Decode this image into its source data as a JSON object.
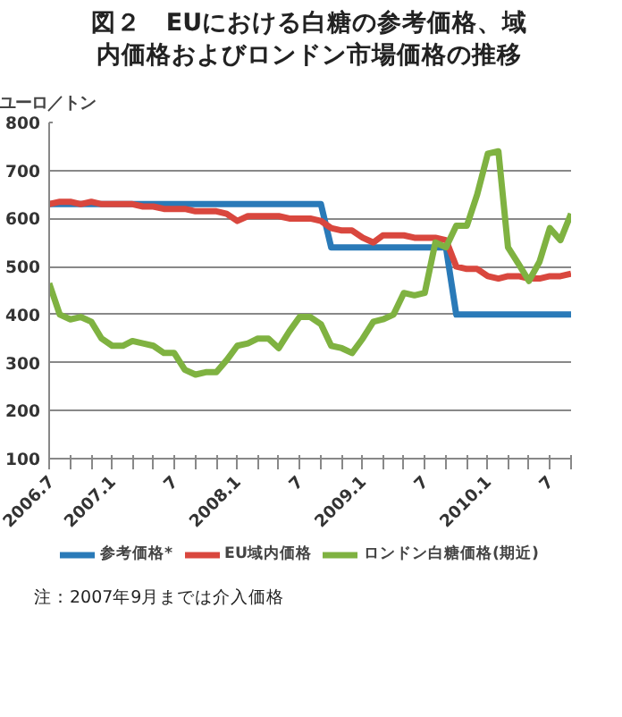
{
  "chart_data": {
    "type": "line",
    "title": "図２　EUにおける白糖の参考価格、域内価格およびロンドン市場価格の推移",
    "ylabel": "ユーロ／トン",
    "x": [
      "2006-07",
      "2006-08",
      "2006-09",
      "2006-10",
      "2006-11",
      "2006-12",
      "2007-01",
      "2007-02",
      "2007-03",
      "2007-04",
      "2007-05",
      "2007-06",
      "2007-07",
      "2007-08",
      "2007-09",
      "2007-10",
      "2007-11",
      "2007-12",
      "2008-01",
      "2008-02",
      "2008-03",
      "2008-04",
      "2008-05",
      "2008-06",
      "2008-07",
      "2008-08",
      "2008-09",
      "2008-10",
      "2008-11",
      "2008-12",
      "2009-01",
      "2009-02",
      "2009-03",
      "2009-04",
      "2009-05",
      "2009-06",
      "2009-07",
      "2009-08",
      "2009-09",
      "2009-10",
      "2009-11",
      "2009-12",
      "2010-01",
      "2010-02",
      "2010-03",
      "2010-04",
      "2010-05",
      "2010-06",
      "2010-07",
      "2010-08",
      "2010-09"
    ],
    "series": [
      {
        "name": "参考価格*",
        "color": "#2a7ab8",
        "values": [
          630,
          630,
          630,
          630,
          630,
          630,
          630,
          630,
          630,
          630,
          630,
          630,
          630,
          630,
          630,
          630,
          630,
          630,
          630,
          630,
          630,
          630,
          630,
          630,
          630,
          630,
          630,
          540,
          540,
          540,
          540,
          540,
          540,
          540,
          540,
          540,
          540,
          540,
          540,
          400,
          400,
          400,
          400,
          400,
          400,
          400,
          400,
          400,
          400,
          400,
          400
        ]
      },
      {
        "name": "EU域内価格",
        "color": "#d9473e",
        "values": [
          630,
          635,
          635,
          630,
          635,
          630,
          630,
          630,
          630,
          625,
          625,
          620,
          620,
          620,
          615,
          615,
          615,
          610,
          595,
          605,
          605,
          605,
          605,
          600,
          600,
          600,
          595,
          580,
          575,
          575,
          560,
          550,
          565,
          565,
          565,
          560,
          560,
          560,
          555,
          500,
          495,
          495,
          480,
          475,
          480,
          480,
          475,
          475,
          480,
          480,
          485
        ]
      },
      {
        "name": "ロンドン白糖価格(期近)",
        "color": "#7fb241",
        "values": [
          465,
          400,
          390,
          395,
          385,
          350,
          335,
          335,
          345,
          340,
          335,
          320,
          320,
          285,
          275,
          280,
          280,
          305,
          335,
          340,
          350,
          350,
          330,
          365,
          395,
          395,
          380,
          335,
          330,
          320,
          350,
          385,
          390,
          400,
          445,
          440,
          445,
          550,
          540,
          585,
          585,
          650,
          735,
          740,
          540,
          505,
          470,
          510,
          580,
          555,
          610
        ]
      }
    ],
    "xlim": [
      "2006-07",
      "2010-09"
    ],
    "xticks": [
      {
        "value": "2006-07",
        "label": "2006.7"
      },
      {
        "value": "2006-09",
        "label": null
      },
      {
        "value": "2006-11",
        "label": null
      },
      {
        "value": "2007-01",
        "label": "2007.1"
      },
      {
        "value": "2007-03",
        "label": null
      },
      {
        "value": "2007-05",
        "label": null
      },
      {
        "value": "2007-07",
        "label": "7"
      },
      {
        "value": "2007-09",
        "label": null
      },
      {
        "value": "2007-11",
        "label": null
      },
      {
        "value": "2008-01",
        "label": "2008.1"
      },
      {
        "value": "2008-03",
        "label": null
      },
      {
        "value": "2008-05",
        "label": null
      },
      {
        "value": "2008-07",
        "label": "7"
      },
      {
        "value": "2008-09",
        "label": null
      },
      {
        "value": "2008-11",
        "label": null
      },
      {
        "value": "2009-01",
        "label": "2009.1"
      },
      {
        "value": "2009-03",
        "label": null
      },
      {
        "value": "2009-05",
        "label": null
      },
      {
        "value": "2009-07",
        "label": "7"
      },
      {
        "value": "2009-09",
        "label": null
      },
      {
        "value": "2009-11",
        "label": null
      },
      {
        "value": "2010-01",
        "label": "2010.1"
      },
      {
        "value": "2010-03",
        "label": null
      },
      {
        "value": "2010-05",
        "label": null
      },
      {
        "value": "2010-07",
        "label": "7"
      },
      {
        "value": "2010-09",
        "label": null
      }
    ],
    "ylim": [
      100,
      800
    ],
    "yticks": [
      100,
      200,
      300,
      400,
      500,
      600,
      700,
      800
    ],
    "grid": "y",
    "legend": "bottom",
    "line_style": "solid",
    "annotations": [
      "注：2007年9月までは介入価格"
    ]
  }
}
